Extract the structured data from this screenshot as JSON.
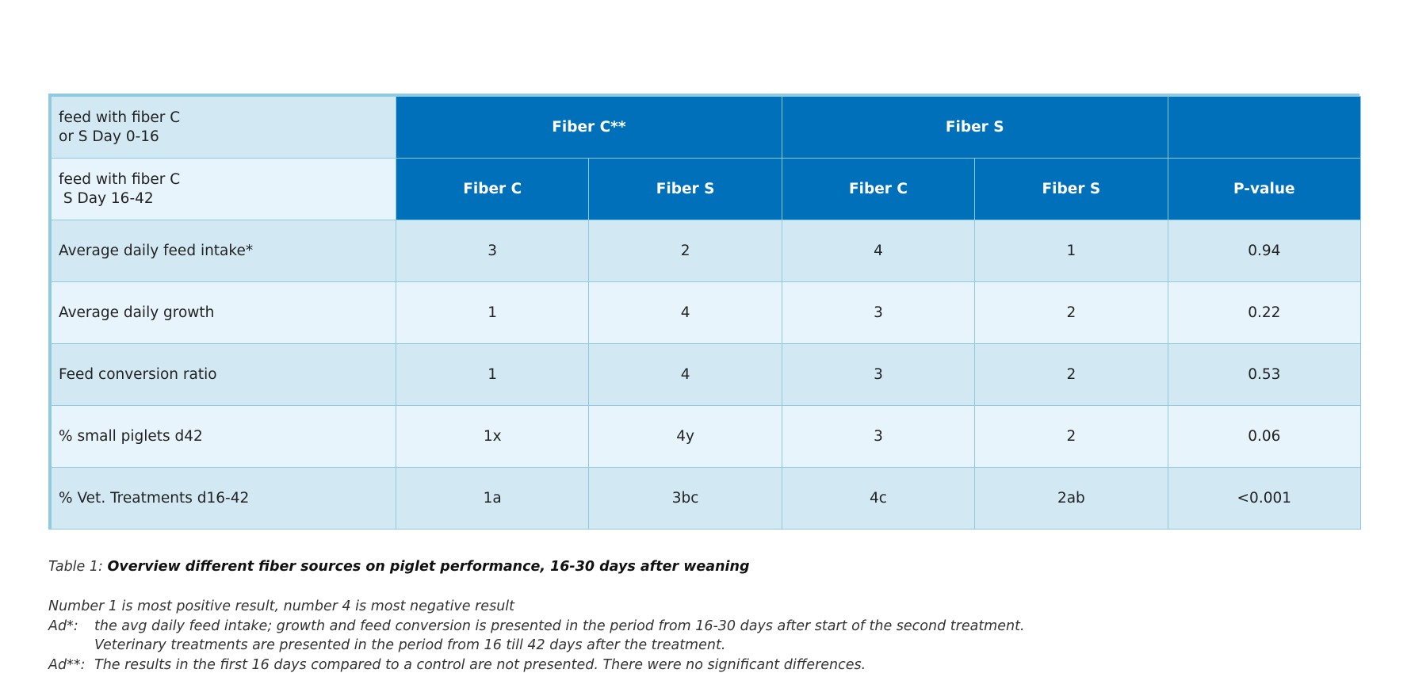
{
  "table": {
    "header_row_1": {
      "label": "feed with fiber C\nor S Day 0-16",
      "groups": [
        "Fiber C**",
        "Fiber S",
        ""
      ]
    },
    "header_row_2": {
      "label": "feed with fiber C\n S Day 16-42",
      "columns": [
        "Fiber C",
        "Fiber S",
        "Fiber C",
        "Fiber S",
        "P-value"
      ]
    },
    "rows": [
      {
        "label": "Average daily feed intake*",
        "values": [
          "3",
          "2",
          "4",
          "1",
          "0.94"
        ]
      },
      {
        "label": "Average daily growth",
        "values": [
          "1",
          "4",
          "3",
          "2",
          "0.22"
        ]
      },
      {
        "label": "Feed conversion ratio",
        "values": [
          "1",
          "4",
          "3",
          "2",
          "0.53"
        ]
      },
      {
        "label": "% small piglets d42",
        "values": [
          "1x",
          "4y",
          "3",
          "2",
          "0.06"
        ]
      },
      {
        "label": "% Vet. Treatments d16-42",
        "values": [
          "1a",
          "3bc",
          "4c",
          "2ab",
          "<0.001"
        ]
      }
    ],
    "colors": {
      "header_blue": "#0070bb",
      "row_light": "#e7f4fb",
      "row_mid": "#d2e9f4",
      "border": "#8fcbe0"
    }
  },
  "caption": {
    "prefix": "Table 1: ",
    "title": "Overview different fiber sources on piglet performance, 16-30 days after weaning"
  },
  "notes": {
    "line1": "Number 1 is most positive result, number 4 is most negative result",
    "ad1_tag": "Ad*:",
    "ad1_text": "the avg daily feed intake; growth and feed conversion is presented in the period from 16-30 days after start of the second treatment.",
    "ad1_text2": "Veterinary treatments are presented in the period from 16 till 42 days after the treatment.",
    "ad2_tag": "Ad**:",
    "ad2_text": "The results in the first 16 days compared to a control are not presented. There were no significant differences."
  }
}
